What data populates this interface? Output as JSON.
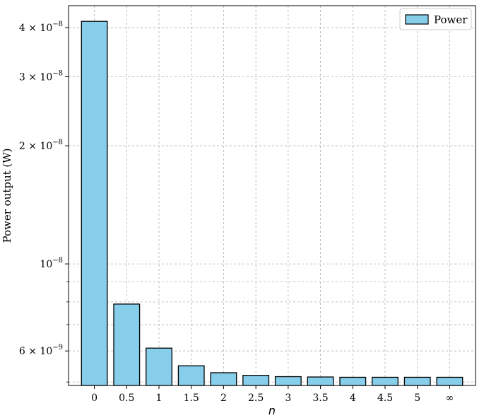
{
  "chart_data": {
    "type": "bar",
    "title": "",
    "xlabel": "n",
    "ylabel": "Power output (W)",
    "yscale": "log",
    "ylim": [
      4.9e-09,
      4.55e-08
    ],
    "grid": true,
    "legend_placement": "top-right",
    "categories": [
      "0",
      "0.5",
      "1",
      "1.5",
      "2",
      "2.5",
      "3",
      "3.5",
      "4",
      "4.5",
      "5",
      "∞"
    ],
    "series": [
      {
        "name": "Power",
        "color": "#87ceeb",
        "edge_color": "#000000",
        "values": [
          4.15e-08,
          7.9e-09,
          6.1e-09,
          5.5e-09,
          5.28e-09,
          5.2e-09,
          5.16e-09,
          5.15e-09,
          5.14e-09,
          5.14e-09,
          5.14e-09,
          5.14e-09
        ]
      }
    ],
    "y_major_ticks": [
      {
        "value": 4e-08,
        "mantissa": "4 × 10",
        "exponent": "−8"
      },
      {
        "value": 3e-08,
        "mantissa": "3 × 10",
        "exponent": "−8"
      },
      {
        "value": 2e-08,
        "mantissa": "2 × 10",
        "exponent": "−8"
      },
      {
        "value": 1e-08,
        "mantissa": "10",
        "exponent": "−8"
      },
      {
        "value": 6e-09,
        "mantissa": "6 × 10",
        "exponent": "−9"
      }
    ],
    "y_minor_ticks": [
      9e-09,
      8e-09,
      7e-09,
      5e-09
    ]
  }
}
